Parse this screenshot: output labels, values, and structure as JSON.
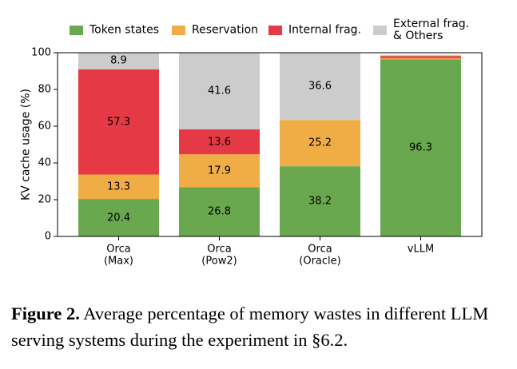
{
  "chart_data": {
    "type": "stacked_bar",
    "ylabel": "KV cache usage (%)",
    "categories": [
      [
        "Orca",
        "(Max)"
      ],
      [
        "Orca",
        "(Pow2)"
      ],
      [
        "Orca",
        "(Oracle)"
      ],
      [
        "vLLM"
      ]
    ],
    "series": [
      {
        "name": "Token states",
        "color": "#6aa84f",
        "values": [
          20.4,
          26.8,
          38.2,
          96.3
        ]
      },
      {
        "name": "Reservation",
        "color": "#f0ad45",
        "values": [
          13.3,
          17.9,
          25.2,
          0.8
        ]
      },
      {
        "name": "Internal frag.",
        "color": "#e63946",
        "values": [
          57.3,
          13.6,
          0,
          1.1
        ]
      },
      {
        "name": "External frag.\n& Others",
        "color": "#cccccc",
        "values": [
          8.9,
          41.6,
          36.6,
          0.6
        ]
      }
    ],
    "ylim": [
      0,
      100
    ],
    "yticks": [
      0,
      20,
      40,
      60,
      80,
      100
    ]
  },
  "caption": {
    "label": "Figure 2.",
    "text": "Average percentage of memory wastes in different LLM serving systems during the experiment in §6.2."
  }
}
